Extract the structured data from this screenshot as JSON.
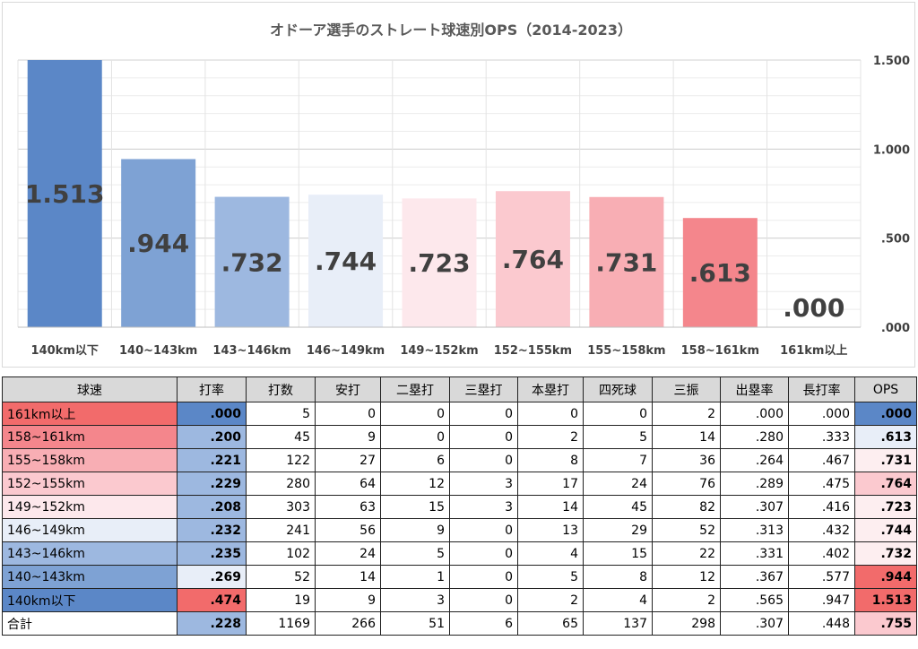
{
  "chart_data": {
    "type": "bar",
    "title": "オドーア選手のストレート球速別OPS（2014-2023）",
    "categories": [
      "140km以下",
      "140~143km",
      "143~146km",
      "146~149km",
      "149~152km",
      "152~155km",
      "155~158km",
      "158~161km",
      "161km以上"
    ],
    "values": [
      1.513,
      0.944,
      0.732,
      0.744,
      0.723,
      0.764,
      0.731,
      0.613,
      0.0
    ],
    "data_labels": [
      "1.513",
      ".944",
      ".732",
      ".744",
      ".723",
      ".764",
      ".731",
      ".613",
      ".000"
    ],
    "bar_colors": [
      "#5b87c7",
      "#7ea2d4",
      "#9db8e0",
      "#e8eef8",
      "#fde8ec",
      "#fbc9cf",
      "#f8aeb4",
      "#f4868c",
      "#f4868c"
    ],
    "ylim": [
      0,
      1.5
    ],
    "yticks": [
      0,
      0.5,
      1.0,
      1.5
    ],
    "ytick_labels": [
      ".000",
      ".500",
      "1.000",
      "1.500"
    ],
    "y_axis_side": "right",
    "grid": true
  },
  "table": {
    "headers": [
      "球速",
      "打率",
      "打数",
      "安打",
      "二塁打",
      "三塁打",
      "本塁打",
      "四死球",
      "三振",
      "出塁率",
      "長打率",
      "OPS"
    ],
    "rows": [
      {
        "cells": [
          "161km以上",
          ".000",
          "5",
          "0",
          "0",
          "0",
          "0",
          "0",
          "2",
          ".000",
          ".000",
          ".000"
        ],
        "label_bg": "#f26b6b",
        "avg_bg": "#5b87c7",
        "ops_bg": "#5b87c7"
      },
      {
        "cells": [
          "158~161km",
          ".200",
          "45",
          "9",
          "0",
          "0",
          "2",
          "5",
          "14",
          ".280",
          ".333",
          ".613"
        ],
        "label_bg": "#f4868c",
        "avg_bg": "#9db8e0",
        "ops_bg": "#e8eef8"
      },
      {
        "cells": [
          "155~158km",
          ".221",
          "122",
          "27",
          "6",
          "0",
          "8",
          "7",
          "36",
          ".264",
          ".467",
          ".731"
        ],
        "label_bg": "#f8aeb4",
        "avg_bg": "#9db8e0",
        "ops_bg": "#fdeef0"
      },
      {
        "cells": [
          "152~155km",
          ".229",
          "280",
          "64",
          "12",
          "3",
          "17",
          "24",
          "76",
          ".289",
          ".475",
          ".764"
        ],
        "label_bg": "#fbc9cf",
        "avg_bg": "#9db8e0",
        "ops_bg": "#fbc9cf"
      },
      {
        "cells": [
          "149~152km",
          ".208",
          "303",
          "63",
          "15",
          "3",
          "14",
          "45",
          "82",
          ".307",
          ".416",
          ".723"
        ],
        "label_bg": "#fde8ec",
        "avg_bg": "#9db8e0",
        "ops_bg": "#fdeef0"
      },
      {
        "cells": [
          "146~149km",
          ".232",
          "241",
          "56",
          "9",
          "0",
          "13",
          "29",
          "52",
          ".313",
          ".432",
          ".744"
        ],
        "label_bg": "#e8eef8",
        "avg_bg": "#9db8e0",
        "ops_bg": "#fdeef0"
      },
      {
        "cells": [
          "143~146km",
          ".235",
          "102",
          "24",
          "5",
          "0",
          "4",
          "15",
          "22",
          ".331",
          ".402",
          ".732"
        ],
        "label_bg": "#9db8e0",
        "avg_bg": "#9db8e0",
        "ops_bg": "#fdeef0"
      },
      {
        "cells": [
          "140~143km",
          ".269",
          "52",
          "14",
          "1",
          "0",
          "5",
          "8",
          "12",
          ".367",
          ".577",
          ".944"
        ],
        "label_bg": "#7ea2d4",
        "avg_bg": "#e8eef8",
        "ops_bg": "#f26b6b"
      },
      {
        "cells": [
          "140km以下",
          ".474",
          "19",
          "9",
          "3",
          "0",
          "2",
          "4",
          "2",
          ".565",
          ".947",
          "1.513"
        ],
        "label_bg": "#5b87c7",
        "avg_bg": "#f26b6b",
        "ops_bg": "#f26b6b"
      },
      {
        "cells": [
          "合計",
          ".228",
          "1169",
          "266",
          "51",
          "6",
          "65",
          "137",
          "298",
          ".307",
          ".448",
          ".755"
        ],
        "label_bg": "#ffffff",
        "avg_bg": "#9db8e0",
        "ops_bg": "#fbc9cf"
      }
    ]
  }
}
